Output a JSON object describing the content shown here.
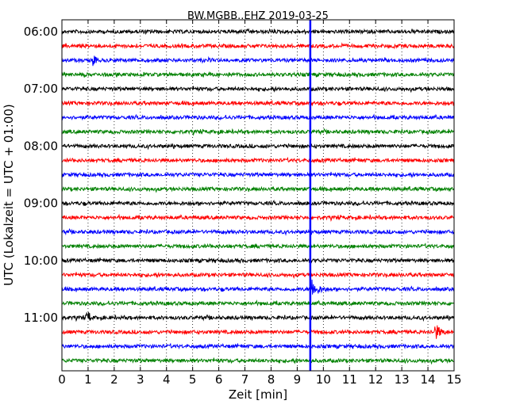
{
  "chart_data": {
    "type": "line",
    "title": "BW.MGBB..EHZ 2019-03-25",
    "xlabel": "Zeit  [min]",
    "ylabel": "UTC (Lokalzeit = UTC + 01:00)",
    "xlim": [
      0,
      15
    ],
    "x_ticks": [
      "0",
      "1",
      "2",
      "3",
      "4",
      "5",
      "6",
      "7",
      "8",
      "9",
      "10",
      "11",
      "12",
      "13",
      "14",
      "15"
    ],
    "y_tick_labels": [
      "06:00",
      "07:00",
      "08:00",
      "09:00",
      "10:00",
      "11:00"
    ],
    "grid": "vertical dotted",
    "trace_interval_minutes": 15,
    "trace_colors": [
      "#000000",
      "#ff0000",
      "#0000ff",
      "#008000"
    ],
    "traces": [
      {
        "start": "06:00",
        "color": "#000000"
      },
      {
        "start": "06:15",
        "color": "#ff0000"
      },
      {
        "start": "06:30",
        "color": "#0000ff"
      },
      {
        "start": "06:45",
        "color": "#008000"
      },
      {
        "start": "07:00",
        "color": "#000000"
      },
      {
        "start": "07:15",
        "color": "#ff0000"
      },
      {
        "start": "07:30",
        "color": "#0000ff"
      },
      {
        "start": "07:45",
        "color": "#008000"
      },
      {
        "start": "08:00",
        "color": "#000000"
      },
      {
        "start": "08:15",
        "color": "#ff0000"
      },
      {
        "start": "08:30",
        "color": "#0000ff"
      },
      {
        "start": "08:45",
        "color": "#008000"
      },
      {
        "start": "09:00",
        "color": "#000000"
      },
      {
        "start": "09:15",
        "color": "#ff0000"
      },
      {
        "start": "09:30",
        "color": "#0000ff"
      },
      {
        "start": "09:45",
        "color": "#008000"
      },
      {
        "start": "10:00",
        "color": "#000000"
      },
      {
        "start": "10:15",
        "color": "#ff0000"
      },
      {
        "start": "10:30",
        "color": "#0000ff"
      },
      {
        "start": "10:45",
        "color": "#008000"
      },
      {
        "start": "11:00",
        "color": "#000000"
      },
      {
        "start": "11:15",
        "color": "#ff0000"
      },
      {
        "start": "11:30",
        "color": "#0000ff"
      },
      {
        "start": "11:45",
        "color": "#008000"
      }
    ],
    "marker_line": {
      "x_minutes": 9.5,
      "color": "#0000ff"
    },
    "events": [
      {
        "trace_start": "10:30",
        "x_minutes": 9.6,
        "description": "earthquake signal"
      },
      {
        "trace_start": "11:15",
        "x_minutes": 14.3,
        "description": "red burst"
      },
      {
        "trace_start": "11:00",
        "x_minutes": 1.0,
        "description": "spike"
      },
      {
        "trace_start": "06:30",
        "x_minutes": 1.25,
        "description": "small spike"
      }
    ]
  }
}
